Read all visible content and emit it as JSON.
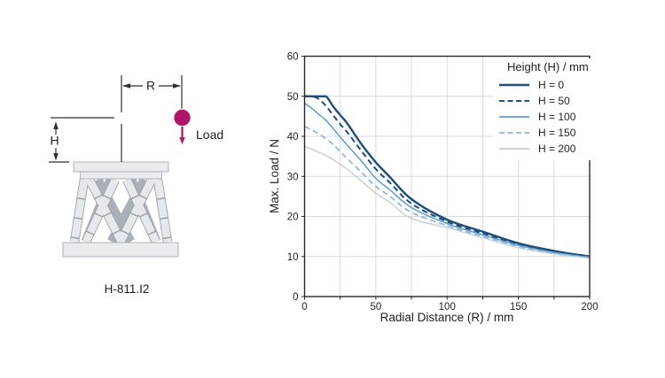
{
  "figure": {
    "background": "#ffffff"
  },
  "diagram": {
    "model_label": "H-811.I2",
    "radius_label": "R",
    "height_label": "H",
    "load_label": "Load",
    "accent_color": "#b0156b",
    "hexapod_light": "#e6e9ec",
    "hexapod_mid": "#aab0b7",
    "hexapod_outline": "#9aa0a8",
    "plate_fill": "#e9ebee",
    "plate_stroke": "#a9aeb4",
    "line_color": "#2e2e2e"
  },
  "chart_data": {
    "type": "line",
    "title": "",
    "xlabel": "Radial Distance (R) / mm",
    "ylabel": "Max. Load / N",
    "xlim": [
      0,
      200
    ],
    "ylim": [
      0,
      60
    ],
    "x_major_ticks": [
      0,
      50,
      100,
      150,
      200
    ],
    "x_minor_step": 25,
    "y_ticks": [
      0,
      10,
      20,
      30,
      40,
      50,
      60
    ],
    "grid": true,
    "legend_title": "Height (H) / mm",
    "legend_position": "top-right",
    "x": [
      0,
      5,
      10,
      15,
      20,
      25,
      30,
      40,
      50,
      60,
      75,
      100,
      125,
      150,
      175,
      200
    ],
    "series": [
      {
        "name": "H = 0",
        "color": "#1f4e79",
        "dash": "solid",
        "width": 2.4,
        "values": [
          50,
          50,
          50,
          50,
          47.5,
          45.3,
          43.2,
          38,
          33.5,
          29.8,
          24.3,
          19.2,
          16.2,
          13.3,
          11.4,
          10
        ]
      },
      {
        "name": "H = 50",
        "color": "#1f4e79",
        "dash": "dashed",
        "width": 2.0,
        "values": [
          50,
          50,
          49.3,
          47.6,
          45.3,
          43,
          41,
          36.3,
          31.8,
          28.4,
          23.2,
          18.7,
          15.8,
          13,
          11.2,
          9.9
        ]
      },
      {
        "name": "H = 100",
        "color": "#5b9bd5",
        "dash": "solid",
        "width": 1.5,
        "values": [
          48.3,
          47,
          45.5,
          44,
          42,
          39.8,
          37.8,
          33.8,
          29.5,
          26.6,
          22.2,
          18.2,
          15.4,
          12.8,
          11,
          9.8
        ]
      },
      {
        "name": "H = 150",
        "color": "#8ab4dc",
        "dash": "dashed",
        "width": 1.6,
        "values": [
          42.5,
          41.6,
          40.6,
          39.4,
          38,
          36.2,
          34.4,
          31,
          27.5,
          25,
          21,
          17.7,
          15,
          12.5,
          10.8,
          9.7
        ]
      },
      {
        "name": "H = 200",
        "color": "#c8cdd2",
        "dash": "solid",
        "width": 1.4,
        "values": [
          37.5,
          36.8,
          36,
          35.2,
          34.2,
          33,
          31.8,
          28.8,
          25.8,
          23.5,
          19.5,
          17.2,
          14.7,
          12.2,
          10.6,
          9.6
        ]
      }
    ],
    "style": {
      "grid_color": "#d9d9d9",
      "axis_color": "#262626",
      "text_color": "#1f1f1f"
    }
  }
}
